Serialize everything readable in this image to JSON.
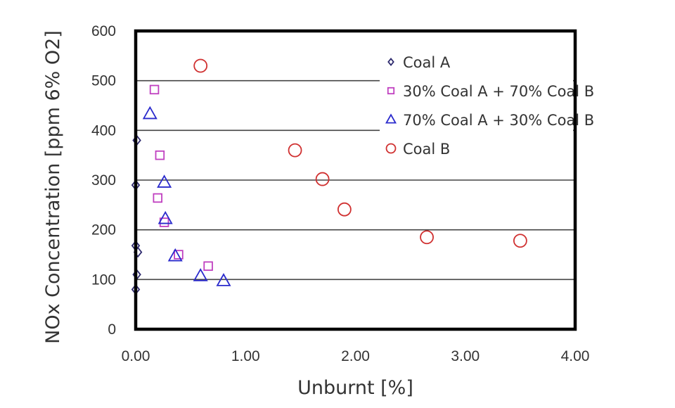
{
  "chart_data": {
    "type": "scatter",
    "title": "",
    "xlabel": "Unburnt [%]",
    "ylabel": "NOx Concentration [ppm 6% O2]",
    "xlim": [
      0,
      4
    ],
    "ylim": [
      0,
      600
    ],
    "x_ticks": [
      0,
      1,
      2,
      3,
      4
    ],
    "x_tick_labels": [
      "0.00",
      "1.00",
      "2.00",
      "3.00",
      "4.00"
    ],
    "y_ticks": [
      0,
      100,
      200,
      300,
      400,
      500,
      600
    ],
    "y_tick_labels": [
      "0",
      "100",
      "200",
      "300",
      "400",
      "500",
      "600"
    ],
    "grid": {
      "horizontal": true,
      "vertical": false
    },
    "legend_position": "top-right",
    "series": [
      {
        "name": "Coal A",
        "marker": "diamond",
        "color": "#2e2a6e",
        "points": [
          [
            0.01,
            380
          ],
          [
            0.0,
            290
          ],
          [
            0.0,
            168
          ],
          [
            0.02,
            155
          ],
          [
            0.01,
            110
          ],
          [
            0.0,
            80
          ]
        ]
      },
      {
        "name": "30% Coal A + 70% Coal B",
        "marker": "square",
        "color": "#c040c0",
        "points": [
          [
            0.17,
            482
          ],
          [
            0.22,
            350
          ],
          [
            0.2,
            264
          ],
          [
            0.26,
            215
          ],
          [
            0.39,
            150
          ],
          [
            0.66,
            127
          ]
        ]
      },
      {
        "name": "70% Coal A + 30% Coal B",
        "marker": "triangle",
        "color": "#2a2acc",
        "points": [
          [
            0.13,
            433
          ],
          [
            0.26,
            295
          ],
          [
            0.27,
            222
          ],
          [
            0.36,
            147
          ],
          [
            0.59,
            107
          ],
          [
            0.8,
            97
          ]
        ]
      },
      {
        "name": "Coal B",
        "marker": "circle",
        "color": "#d03030",
        "points": [
          [
            0.59,
            530
          ],
          [
            1.45,
            360
          ],
          [
            1.7,
            302
          ],
          [
            1.9,
            241
          ],
          [
            2.65,
            185
          ],
          [
            3.5,
            178
          ]
        ]
      }
    ]
  }
}
